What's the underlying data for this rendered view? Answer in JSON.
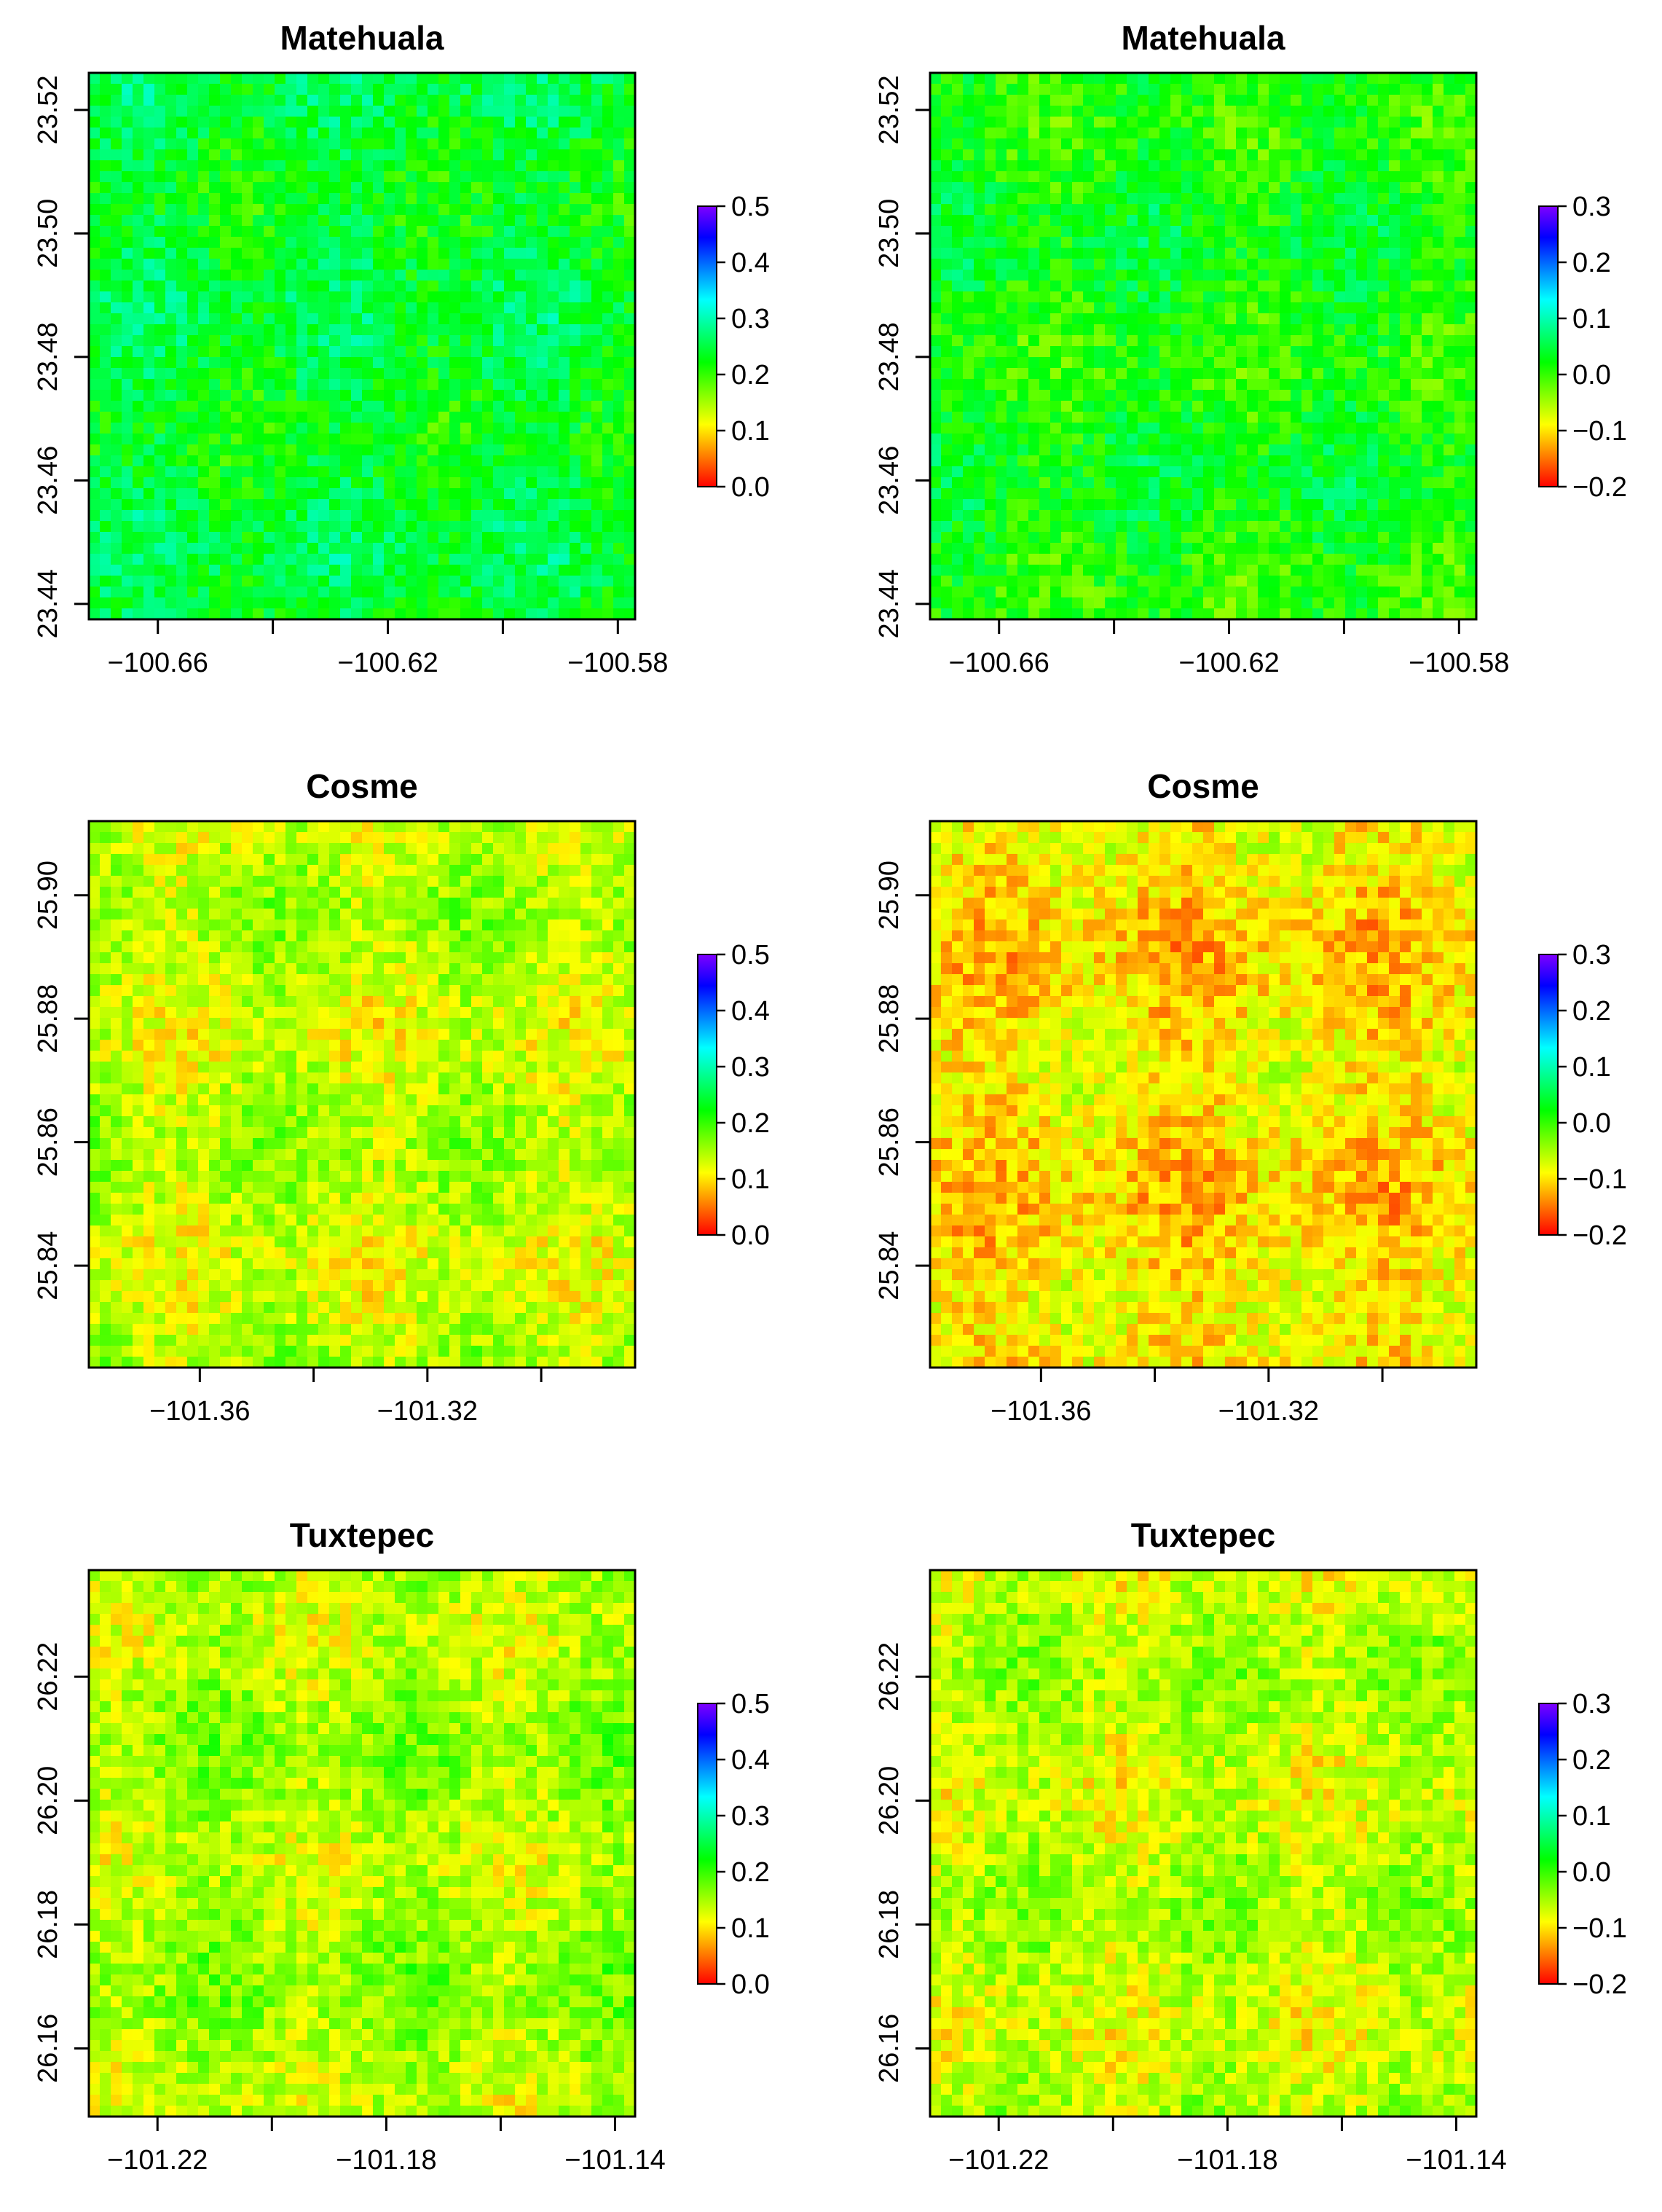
{
  "chart_data": [
    {
      "type": "heatmap",
      "title": "Matehuala",
      "xlabel": "",
      "ylabel": "",
      "x_ticks": [
        -100.66,
        -100.62,
        -100.58
      ],
      "x_tick_labels": [
        "−100.66",
        "−100.62",
        "−100.58"
      ],
      "x_minor_ticks": [
        -100.64,
        -100.6
      ],
      "xlim": [
        -100.672,
        -100.577
      ],
      "y_ticks": [
        23.44,
        23.46,
        23.48,
        23.5,
        23.52
      ],
      "y_tick_labels": [
        "23.44",
        "23.46",
        "23.48",
        "23.50",
        "23.52"
      ],
      "ylim": [
        23.4375,
        23.526
      ],
      "legend": {
        "position": "right",
        "range": [
          0.0,
          0.5
        ],
        "ticks": [
          0.0,
          0.1,
          0.2,
          0.3,
          0.4,
          0.5
        ],
        "tick_labels": [
          "0.0",
          "0.1",
          "0.2",
          "0.3",
          "0.4",
          "0.5"
        ]
      },
      "palette": [
        "#ff0000",
        "#ff8000",
        "#ffff00",
        "#80ff00",
        "#00ff00",
        "#00ff80",
        "#00ffff",
        "#0080ff",
        "#0000ff",
        "#8000ff"
      ],
      "field_mean": 0.24,
      "grid": false
    },
    {
      "type": "heatmap",
      "title": "Matehuala",
      "xlabel": "",
      "ylabel": "",
      "x_ticks": [
        -100.66,
        -100.62,
        -100.58
      ],
      "x_tick_labels": [
        "−100.66",
        "−100.62",
        "−100.58"
      ],
      "x_minor_ticks": [
        -100.64,
        -100.6
      ],
      "xlim": [
        -100.672,
        -100.577
      ],
      "y_ticks": [
        23.44,
        23.46,
        23.48,
        23.5,
        23.52
      ],
      "y_tick_labels": [
        "23.44",
        "23.46",
        "23.48",
        "23.50",
        "23.52"
      ],
      "ylim": [
        23.4375,
        23.526
      ],
      "legend": {
        "position": "right",
        "range": [
          -0.2,
          0.3
        ],
        "ticks": [
          -0.2,
          -0.1,
          0.0,
          0.1,
          0.2,
          0.3
        ],
        "tick_labels": [
          "−0.2",
          "−0.1",
          "0.0",
          "0.1",
          "0.2",
          "0.3"
        ]
      },
      "palette": [
        "#ff0000",
        "#ff8000",
        "#ffff00",
        "#80ff00",
        "#00ff00",
        "#00ff80",
        "#00ffff",
        "#0080ff",
        "#0000ff",
        "#8000ff"
      ],
      "field_mean": 0.02,
      "grid": false
    },
    {
      "type": "heatmap",
      "title": "Cosme",
      "xlabel": "",
      "ylabel": "",
      "x_ticks": [
        -101.36,
        -101.32
      ],
      "x_tick_labels": [
        "−101.36",
        "−101.32"
      ],
      "x_minor_ticks": [
        -101.34,
        -101.3
      ],
      "xlim": [
        -101.3795,
        -101.2835
      ],
      "y_ticks": [
        25.84,
        25.86,
        25.88,
        25.9
      ],
      "y_tick_labels": [
        "25.84",
        "25.86",
        "25.88",
        "25.90"
      ],
      "ylim": [
        25.8235,
        25.912
      ],
      "legend": {
        "position": "right",
        "range": [
          0.0,
          0.5
        ],
        "ticks": [
          0.0,
          0.1,
          0.2,
          0.3,
          0.4,
          0.5
        ],
        "tick_labels": [
          "0.0",
          "0.1",
          "0.2",
          "0.3",
          "0.4",
          "0.5"
        ]
      },
      "palette": [
        "#ff0000",
        "#ff8000",
        "#ffff00",
        "#80ff00",
        "#00ff00",
        "#00ff80",
        "#00ffff",
        "#0080ff",
        "#0000ff",
        "#8000ff"
      ],
      "field_mean": 0.14,
      "grid": false
    },
    {
      "type": "heatmap",
      "title": "Cosme",
      "xlabel": "",
      "ylabel": "",
      "x_ticks": [
        -101.36,
        -101.32
      ],
      "x_tick_labels": [
        "−101.36",
        "−101.32"
      ],
      "x_minor_ticks": [
        -101.34,
        -101.3
      ],
      "xlim": [
        -101.3795,
        -101.2835
      ],
      "y_ticks": [
        25.84,
        25.86,
        25.88,
        25.9
      ],
      "y_tick_labels": [
        "25.84",
        "25.86",
        "25.88",
        "25.90"
      ],
      "ylim": [
        25.8235,
        25.912
      ],
      "legend": {
        "position": "right",
        "range": [
          -0.2,
          0.3
        ],
        "ticks": [
          -0.2,
          -0.1,
          0.0,
          0.1,
          0.2,
          0.3
        ],
        "tick_labels": [
          "−0.2",
          "−0.1",
          "0.0",
          "0.1",
          "0.2",
          "0.3"
        ]
      },
      "palette": [
        "#ff0000",
        "#ff8000",
        "#ffff00",
        "#80ff00",
        "#00ff00",
        "#00ff80",
        "#00ffff",
        "#0080ff",
        "#0000ff",
        "#8000ff"
      ],
      "field_mean": -0.1,
      "grid": false
    },
    {
      "type": "heatmap",
      "title": "Tuxtepec",
      "xlabel": "",
      "ylabel": "",
      "x_ticks": [
        -101.22,
        -101.18,
        -101.14
      ],
      "x_tick_labels": [
        "−101.22",
        "−101.18",
        "−101.14"
      ],
      "x_minor_ticks": [
        -101.2,
        -101.16
      ],
      "xlim": [
        -101.232,
        -101.1365
      ],
      "y_ticks": [
        26.16,
        26.18,
        26.2,
        26.22
      ],
      "y_tick_labels": [
        "26.16",
        "26.18",
        "26.20",
        "26.22"
      ],
      "ylim": [
        26.149,
        26.2372
      ],
      "legend": {
        "position": "right",
        "range": [
          0.0,
          0.5
        ],
        "ticks": [
          0.0,
          0.1,
          0.2,
          0.3,
          0.4,
          0.5
        ],
        "tick_labels": [
          "0.0",
          "0.1",
          "0.2",
          "0.3",
          "0.4",
          "0.5"
        ]
      },
      "palette": [
        "#ff0000",
        "#ff8000",
        "#ffff00",
        "#80ff00",
        "#00ff00",
        "#00ff80",
        "#00ffff",
        "#0080ff",
        "#0000ff",
        "#8000ff"
      ],
      "field_mean": 0.15,
      "grid": false
    },
    {
      "type": "heatmap",
      "title": "Tuxtepec",
      "xlabel": "",
      "ylabel": "",
      "x_ticks": [
        -101.22,
        -101.18,
        -101.14
      ],
      "x_tick_labels": [
        "−101.22",
        "−101.18",
        "−101.14"
      ],
      "x_minor_ticks": [
        -101.2,
        -101.16
      ],
      "xlim": [
        -101.232,
        -101.1365
      ],
      "y_ticks": [
        26.16,
        26.18,
        26.2,
        26.22
      ],
      "y_tick_labels": [
        "26.16",
        "26.18",
        "26.20",
        "26.22"
      ],
      "ylim": [
        26.149,
        26.2372
      ],
      "legend": {
        "position": "right",
        "range": [
          -0.2,
          0.3
        ],
        "ticks": [
          -0.2,
          -0.1,
          0.0,
          0.1,
          0.2,
          0.3
        ],
        "tick_labels": [
          "−0.2",
          "−0.1",
          "0.0",
          "0.1",
          "0.2",
          "0.3"
        ]
      },
      "palette": [
        "#ff0000",
        "#ff8000",
        "#ffff00",
        "#80ff00",
        "#00ff00",
        "#00ff80",
        "#00ffff",
        "#0080ff",
        "#0000ff",
        "#8000ff"
      ],
      "field_mean": -0.06,
      "grid": false
    }
  ]
}
